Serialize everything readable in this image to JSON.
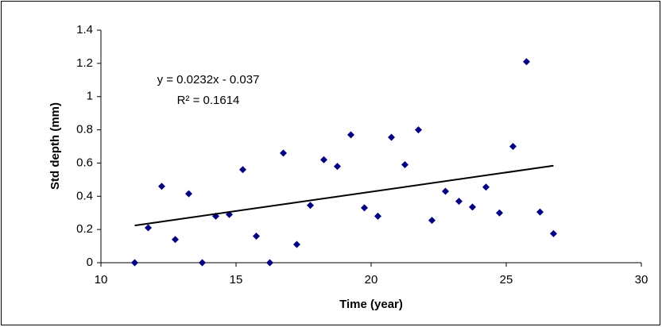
{
  "chart_data": {
    "type": "scatter",
    "x_label": "Time (year)",
    "y_label": "Std depth (mm)",
    "series": [
      {
        "color": "#000080",
        "x": [
          11.25,
          11.75,
          12.25,
          12.75,
          13.25,
          13.75,
          14.25,
          14.75,
          15.25,
          15.75,
          16.25,
          16.75,
          17.25,
          17.75,
          18.25,
          18.75,
          19.25,
          19.75,
          20.25,
          20.75,
          21.25,
          21.75,
          22.25,
          22.75,
          23.25,
          23.75,
          24.25,
          24.75,
          25.25,
          25.75,
          26.25,
          26.75
        ],
        "values": [
          0,
          0.21,
          0.46,
          0.14,
          0.415,
          0,
          0.28,
          0.29,
          0.56,
          0.16,
          0,
          0.66,
          0.11,
          0.345,
          0.62,
          0.58,
          0.77,
          0.33,
          0.28,
          0.755,
          0.59,
          0.8,
          0.255,
          0.43,
          0.37,
          0.335,
          0.455,
          0.3,
          0.7,
          1.21,
          0.305,
          0.175
        ]
      }
    ],
    "trendline": {
      "color": "#000000",
      "x": [
        11.25,
        26.75
      ],
      "values": [
        0.224,
        0.584
      ],
      "equation": "y = 0.0232x - 0.037",
      "r_squared": "R² = 0.1614"
    },
    "xlim": [
      10,
      30
    ],
    "xticks": [
      10,
      15,
      20,
      25,
      30
    ],
    "ylim": [
      0,
      1.4
    ],
    "yticks": [
      0,
      0.2,
      0.4,
      0.6,
      0.8,
      1,
      1.2,
      1.4
    ]
  }
}
